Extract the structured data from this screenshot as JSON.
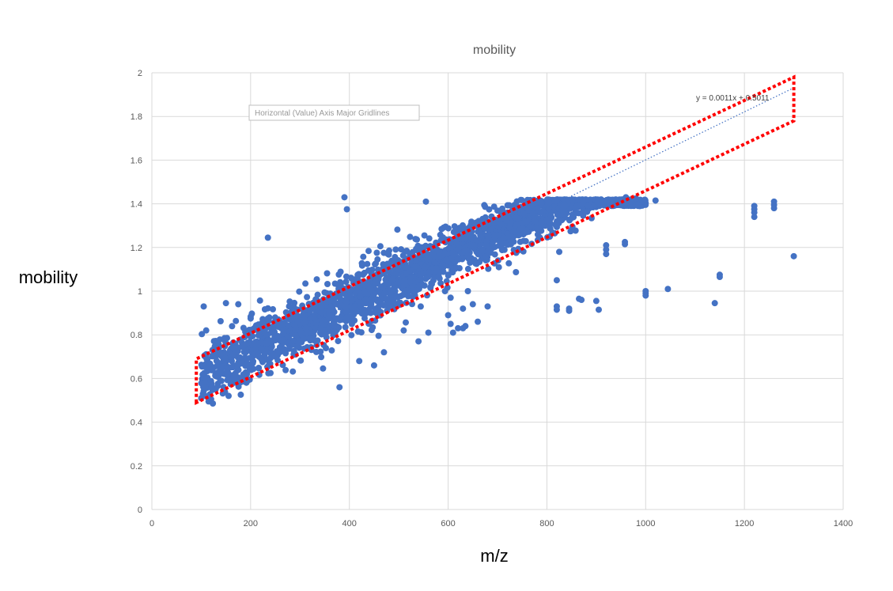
{
  "chart_data": {
    "type": "scatter",
    "title": "mobility",
    "xlabel": "m/z",
    "ylabel": "mobility",
    "xlim": [
      0,
      1400
    ],
    "ylim": [
      0,
      2
    ],
    "x_ticks": [
      0,
      200,
      400,
      600,
      800,
      1000,
      1200,
      1400
    ],
    "y_ticks": [
      0,
      0.2,
      0.4,
      0.6,
      0.8,
      1,
      1.2,
      1.4,
      1.6,
      1.8,
      2
    ],
    "grid": true,
    "legend": "none",
    "marker_color": "#4472C4",
    "highlight_color": "#FF0000",
    "trendline": {
      "label": "y = 0.0011x + 0.5011",
      "slope": 0.0011,
      "intercept": 0.5011,
      "x_range": [
        100,
        1300
      ],
      "style": "dotted",
      "color": "#4472C4"
    },
    "highlight_region": {
      "style": "dotted",
      "color": "#FF0000",
      "polygon": [
        [
          90,
          0.49
        ],
        [
          90,
          0.69
        ],
        [
          1300,
          1.98
        ],
        [
          1300,
          1.78
        ]
      ]
    },
    "tooltip": "Horizontal (Value) Axis Major Gridlines",
    "main_band": {
      "x_range": [
        100,
        1000
      ],
      "slope": 0.0011,
      "intercept": 0.5011,
      "plateau": 1.42,
      "spread": 0.07,
      "count": 2600
    },
    "series": [
      {
        "points": [
          [
            100,
            0.51
          ],
          [
            105,
            0.93
          ],
          [
            110,
            0.82
          ],
          [
            150,
            0.945
          ],
          [
            175,
            0.94
          ],
          [
            235,
            1.245
          ],
          [
            390,
            1.43
          ],
          [
            395,
            1.375
          ],
          [
            380,
            0.56
          ],
          [
            640,
            1.0
          ],
          [
            605,
            0.97
          ],
          [
            650,
            0.94
          ],
          [
            630,
            0.92
          ],
          [
            680,
            1.18
          ],
          [
            680,
            0.93
          ],
          [
            600,
            0.89
          ],
          [
            605,
            0.85
          ],
          [
            620,
            0.83
          ],
          [
            630,
            0.83
          ],
          [
            635,
            0.84
          ],
          [
            660,
            0.86
          ],
          [
            610,
            0.81
          ],
          [
            560,
            0.81
          ],
          [
            540,
            0.77
          ],
          [
            510,
            0.82
          ],
          [
            470,
            0.72
          ],
          [
            450,
            0.66
          ],
          [
            420,
            0.68
          ],
          [
            820,
            1.05
          ],
          [
            825,
            1.18
          ],
          [
            820,
            0.93
          ],
          [
            820,
            0.915
          ],
          [
            845,
            0.92
          ],
          [
            845,
            0.91
          ],
          [
            865,
            0.965
          ],
          [
            870,
            0.96
          ],
          [
            900,
            0.955
          ],
          [
            905,
            0.915
          ],
          [
            920,
            1.21
          ],
          [
            920,
            1.19
          ],
          [
            920,
            1.17
          ],
          [
            958,
            1.225
          ],
          [
            958,
            1.215
          ],
          [
            1000,
            1.0
          ],
          [
            1000,
            0.99
          ],
          [
            1000,
            0.98
          ],
          [
            1045,
            1.01
          ],
          [
            1140,
            0.945
          ],
          [
            1150,
            1.075
          ],
          [
            1150,
            1.065
          ],
          [
            1220,
            1.39
          ],
          [
            1220,
            1.375
          ],
          [
            1220,
            1.36
          ],
          [
            1220,
            1.34
          ],
          [
            1260,
            1.41
          ],
          [
            1260,
            1.395
          ],
          [
            1260,
            1.38
          ],
          [
            1300,
            1.16
          ],
          [
            1020,
            1.415
          ],
          [
            980,
            1.425
          ],
          [
            960,
            1.43
          ],
          [
            555,
            1.41
          ]
        ]
      }
    ]
  }
}
